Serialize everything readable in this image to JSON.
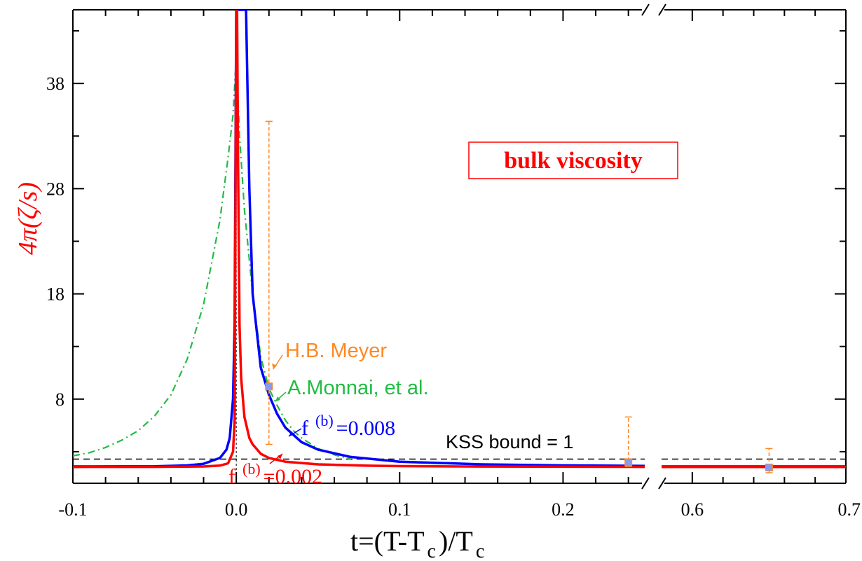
{
  "chart_data": {
    "type": "line",
    "xlabel": "t=(T-T",
    "xlabel_sub": "c",
    "xlabel_tail": ")/T",
    "xlabel_sub2": "c",
    "ylabel": "4π(ζ/s)",
    "ylim": [
      0,
      45
    ],
    "yticks": [
      8,
      18,
      28,
      38
    ],
    "y_tick_labels": [
      "8",
      "18",
      "28",
      "38"
    ],
    "x_axis_broken": true,
    "x_panels": [
      {
        "xlim": [
          -0.1,
          0.25
        ],
        "ticks": [
          -0.1,
          0.0,
          0.1,
          0.2
        ],
        "tick_labels": [
          "-0.1",
          "0.0",
          "0.1",
          "0.2"
        ]
      },
      {
        "xlim": [
          0.58,
          0.7
        ],
        "ticks": [
          0.6,
          0.7
        ],
        "tick_labels": [
          "0.6",
          "0.7"
        ]
      }
    ],
    "grid": false,
    "box_label": "bulk viscosity",
    "series": [
      {
        "name": "f",
        "sup": "(b)",
        "value_text": "=0.002",
        "color": "#ff0000",
        "style": "solid",
        "x": [
          -0.1,
          -0.05,
          -0.02,
          -0.01,
          -0.005,
          -0.002,
          -0.001,
          0.0,
          0.0005,
          0.001,
          0.002,
          0.003,
          0.005,
          0.008,
          0.01,
          0.015,
          0.02,
          0.03,
          0.05,
          0.08,
          0.1,
          0.15,
          0.2,
          0.25,
          0.58,
          0.65,
          0.7
        ],
        "y": [
          1.55,
          1.56,
          1.6,
          1.68,
          1.9,
          3.0,
          6.0,
          45,
          45,
          32,
          15,
          10,
          6.3,
          4.3,
          3.7,
          2.8,
          2.4,
          2.05,
          1.8,
          1.67,
          1.63,
          1.59,
          1.57,
          1.56,
          1.55,
          1.55,
          1.55
        ]
      },
      {
        "name": "f",
        "sup": "(b)",
        "value_text": "=0.008",
        "color": "#0000ff",
        "style": "solid",
        "x": [
          -0.1,
          -0.05,
          -0.03,
          -0.02,
          -0.01,
          -0.006,
          -0.004,
          -0.002,
          -0.001,
          0.0,
          0.002,
          0.005,
          0.006,
          0.008,
          0.01,
          0.015,
          0.02,
          0.025,
          0.03,
          0.04,
          0.05,
          0.07,
          0.1,
          0.15,
          0.2,
          0.25,
          0.58,
          0.65,
          0.7
        ],
        "y": [
          1.6,
          1.62,
          1.7,
          1.85,
          2.4,
          3.2,
          4.3,
          8.0,
          15,
          45,
          45,
          45,
          45,
          28,
          18,
          11,
          8.4,
          6.6,
          5.3,
          3.9,
          3.2,
          2.5,
          2.05,
          1.8,
          1.7,
          1.65,
          1.6,
          1.6,
          1.6
        ]
      },
      {
        "name": "A.Monnai, et al.",
        "color": "#22bb44",
        "style": "dashdot",
        "x": [
          -0.1,
          -0.09,
          -0.08,
          -0.07,
          -0.06,
          -0.05,
          -0.04,
          -0.03,
          -0.02,
          -0.01,
          -0.005,
          -0.002,
          0.0,
          0.002,
          0.005,
          0.01,
          0.015,
          0.02,
          0.025,
          0.03,
          0.035,
          0.04,
          0.05,
          0.06,
          0.07
        ],
        "y": [
          2.6,
          2.9,
          3.4,
          4.1,
          5.0,
          6.4,
          8.4,
          11.8,
          17.0,
          25.0,
          31.0,
          35.0,
          40.5,
          33.0,
          26.0,
          18.0,
          12.0,
          9.0,
          7.4,
          6.0,
          5.0,
          4.3,
          3.3,
          2.7,
          2.3
        ]
      }
    ],
    "kss": {
      "label": "KSS bound = 1",
      "y": 2.3
    },
    "meyer": {
      "label": "H.B. Meyer",
      "color": "#ff8822",
      "points": [
        {
          "x": 0.02,
          "y": 9.2,
          "err_low": 3.7,
          "err_high": 34.4
        },
        {
          "x": 0.24,
          "y": 2.0,
          "err_low": 1.6,
          "err_high": 6.3
        },
        {
          "x": 0.65,
          "y": 1.5,
          "err_low": 1.0,
          "err_high": 3.3
        }
      ]
    },
    "annotations": {
      "meyer_label": "H.B. Meyer",
      "monnai_label": "A.Monnai, et al.",
      "blue_label_name": "f",
      "blue_label_sup": "(b)",
      "blue_label_value": "=0.008",
      "red_label_name": "f",
      "red_label_sup": "(b)",
      "red_label_value": "=0.002"
    },
    "colors": {
      "red": "#ff0000",
      "blue": "#0000ff",
      "green": "#22bb44",
      "orange": "#ff8822",
      "black": "#000000"
    }
  }
}
